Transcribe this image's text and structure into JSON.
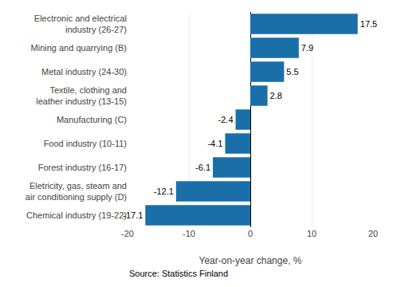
{
  "chart_data": {
    "type": "bar",
    "orientation": "horizontal",
    "categories": [
      "Chemical industry (19-22)",
      "Eletricity, gas, steam and\nair conditioning supply (D)",
      "Forest industry (16-17)",
      "Food industry (10-11)",
      "Manufacturing (C)",
      "Textile, clothing and\nleather industry (13-15)",
      "Metal industry (24-30)",
      "Mining and quarrying (B)",
      "Electronic and electrical\nindustry (26-27)"
    ],
    "values": [
      -17.1,
      -12.1,
      -6.1,
      -4.1,
      -2.4,
      2.8,
      5.5,
      7.9,
      17.5
    ],
    "color": "#1a6fa8",
    "xlim": [
      -20,
      20
    ],
    "xticks": [
      -20,
      -10,
      0,
      10,
      20
    ],
    "xlabel": "Year-on-year change, %",
    "annotations": [
      "Source: Statistics Finland"
    ],
    "data_labels": true,
    "grid": true
  }
}
